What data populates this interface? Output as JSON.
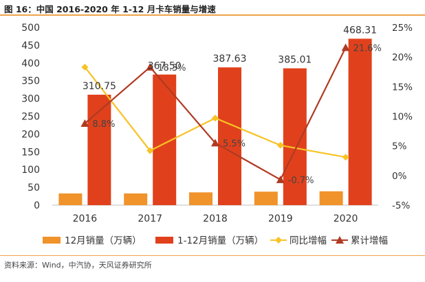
{
  "figure": {
    "title": "图 16：中国 2016-2020 年 1-12 月卡车销量与增速",
    "source": "资料来源：Wind，中汽协，天风证券研究所"
  },
  "colors": {
    "bar_dec": "#f0932b",
    "bar_ytd": "#e0411c",
    "line_yoy": "#f7c325",
    "line_cum": "#b03a22",
    "rule": "#f0a24a"
  },
  "chart_data": {
    "type": "bar",
    "categories": [
      "2016",
      "2017",
      "2018",
      "2019",
      "2020"
    ],
    "ylim": [
      0,
      500
    ],
    "yticks": [
      "0",
      "50",
      "100",
      "150",
      "200",
      "250",
      "300",
      "350",
      "400",
      "450",
      "500"
    ],
    "y2lim": [
      -5,
      25
    ],
    "y2ticks": [
      "-5%",
      "0%",
      "5%",
      "10%",
      "15%",
      "20%",
      "25%"
    ],
    "grid": false,
    "legend_position": "bottom",
    "series": [
      {
        "name": "12月销量（万辆）",
        "kind": "bar",
        "axis": "left",
        "values": [
          33,
          33,
          36,
          38,
          39
        ],
        "labels": [
          "",
          "",
          "",
          "",
          ""
        ]
      },
      {
        "name": "1-12月销量（万辆）",
        "kind": "bar",
        "axis": "left",
        "values": [
          310.75,
          367.5,
          387.63,
          385.01,
          468.31
        ],
        "labels": [
          "310.75",
          "367.50",
          "387.63",
          "385.01",
          "468.31"
        ]
      },
      {
        "name": "同比增幅",
        "kind": "line",
        "axis": "right",
        "marker": "diamond",
        "values": [
          18.3,
          4.2,
          9.7,
          5.1,
          3.1
        ],
        "labels": [
          "",
          "",
          "",
          "",
          ""
        ]
      },
      {
        "name": "累计增幅",
        "kind": "line",
        "axis": "right",
        "marker": "triangle",
        "values": [
          8.8,
          18.3,
          5.5,
          -0.7,
          21.6
        ],
        "labels": [
          "8.8%",
          "18.3%",
          "5.5%",
          "-0.7%",
          "21.6%"
        ]
      }
    ]
  }
}
